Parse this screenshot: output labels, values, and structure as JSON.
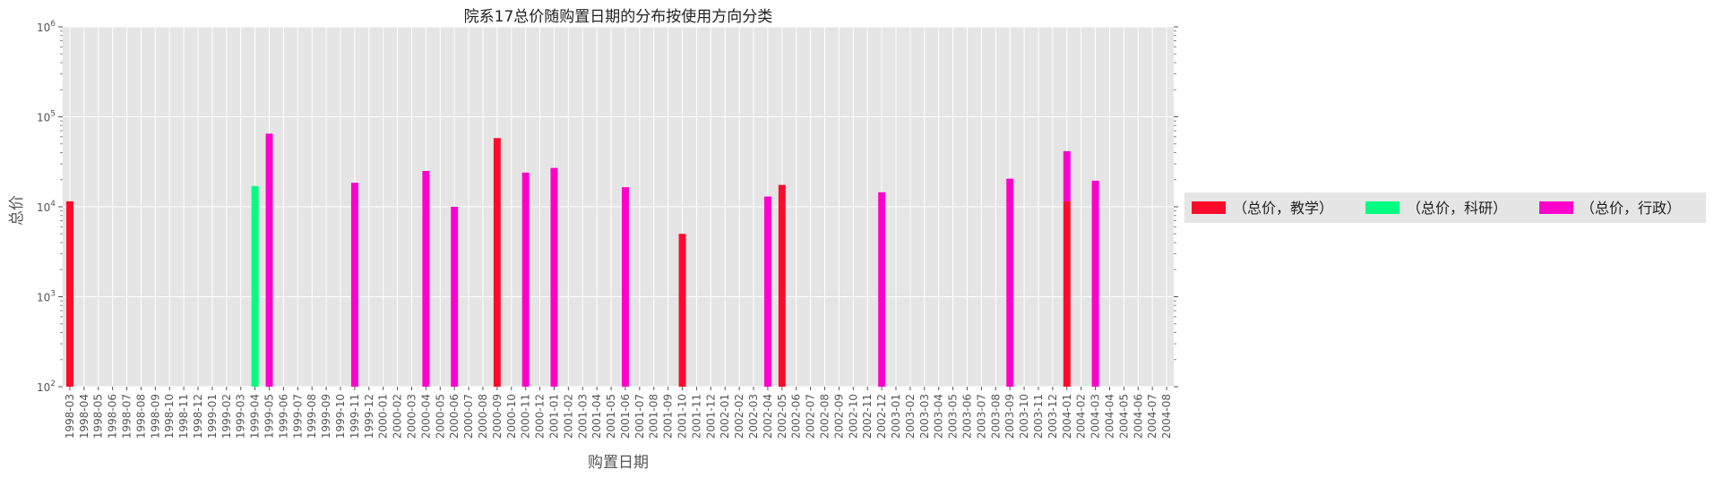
{
  "chart_data": {
    "type": "bar",
    "stacked": true,
    "title": "院系17总价随购置日期的分布按使用方向分类",
    "xlabel": "购置日期",
    "ylabel": "总价",
    "yscale": "log",
    "ylim": [
      100,
      1000000
    ],
    "ytick_labels": [
      {
        "value": 100,
        "base": "10",
        "exp": "2"
      },
      {
        "value": 1000,
        "base": "10",
        "exp": "3"
      },
      {
        "value": 10000,
        "base": "10",
        "exp": "4"
      },
      {
        "value": 100000,
        "base": "10",
        "exp": "5"
      },
      {
        "value": 1000000,
        "base": "10",
        "exp": "6"
      }
    ],
    "grid": true,
    "legend_position": "right",
    "categories": [
      "1998-03",
      "1998-04",
      "1998-05",
      "1998-06",
      "1998-07",
      "1998-08",
      "1998-09",
      "1998-10",
      "1998-11",
      "1998-12",
      "1999-01",
      "1999-02",
      "1999-03",
      "1999-04",
      "1999-05",
      "1999-06",
      "1999-07",
      "1999-08",
      "1999-09",
      "1999-10",
      "1999-11",
      "1999-12",
      "2000-01",
      "2000-02",
      "2000-03",
      "2000-04",
      "2000-05",
      "2000-06",
      "2000-07",
      "2000-08",
      "2000-09",
      "2000-10",
      "2000-11",
      "2000-12",
      "2001-01",
      "2001-02",
      "2001-03",
      "2001-04",
      "2001-05",
      "2001-06",
      "2001-07",
      "2001-08",
      "2001-09",
      "2001-10",
      "2001-11",
      "2001-12",
      "2002-01",
      "2002-02",
      "2002-03",
      "2002-04",
      "2002-05",
      "2002-06",
      "2002-07",
      "2002-08",
      "2002-09",
      "2002-10",
      "2002-11",
      "2002-12",
      "2003-01",
      "2003-02",
      "2003-03",
      "2003-04",
      "2003-05",
      "2003-06",
      "2003-07",
      "2003-08",
      "2003-09",
      "2003-10",
      "2003-11",
      "2003-12",
      "2004-01",
      "2004-02",
      "2004-03",
      "2004-04",
      "2004-05",
      "2004-06",
      "2004-07",
      "2004-08"
    ],
    "series": [
      {
        "name": "（总价，教学）",
        "color": "#ff0a2a",
        "points": [
          {
            "x": "1998-03",
            "y": 11500
          },
          {
            "x": "2000-09",
            "y": 58000
          },
          {
            "x": "2001-10",
            "y": 5000
          },
          {
            "x": "2002-05",
            "y": 17500
          },
          {
            "x": "2004-01",
            "y": 11500
          }
        ]
      },
      {
        "name": "（总价，科研）",
        "color": "#00ff80",
        "points": [
          {
            "x": "1999-04",
            "y": 17000
          }
        ]
      },
      {
        "name": "（总价，行政）",
        "color": "#ff00cc",
        "points": [
          {
            "x": "1999-05",
            "y": 65000
          },
          {
            "x": "1999-11",
            "y": 18500
          },
          {
            "x": "2000-04",
            "y": 25000
          },
          {
            "x": "2000-06",
            "y": 10000
          },
          {
            "x": "2000-11",
            "y": 24000
          },
          {
            "x": "2001-01",
            "y": 27000
          },
          {
            "x": "2001-06",
            "y": 16500
          },
          {
            "x": "2002-04",
            "y": 13000
          },
          {
            "x": "2002-12",
            "y": 14500
          },
          {
            "x": "2003-09",
            "y": 20500
          },
          {
            "x": "2004-01",
            "y": 30000
          },
          {
            "x": "2004-03",
            "y": 19500
          }
        ]
      }
    ]
  }
}
